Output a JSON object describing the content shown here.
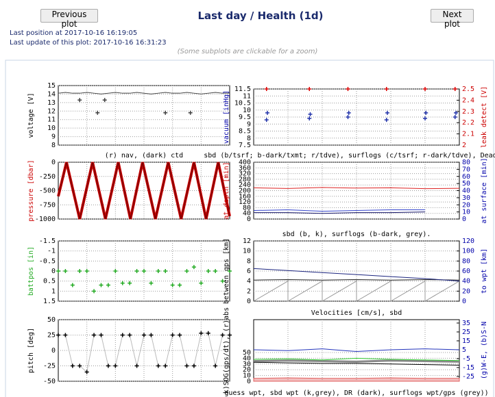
{
  "page": {
    "prev_button": "Previous plot",
    "title": "Last day / Health (1d)",
    "next_button": "Next plot",
    "last_position": "Last position at 2017-10-16 16:19:05",
    "last_update": "Last update of this plot: 2017-10-16 16:31:23",
    "note": "(Some subplots are clickable for a zoom)"
  },
  "chart_data": [
    {
      "type": "line",
      "ylabel": "voltage [V]",
      "ylabel_color": "#000000",
      "xlim": [
        0,
        24
      ],
      "ylim": [
        8,
        15
      ],
      "yticks": [
        8,
        9,
        10,
        11,
        12,
        13,
        14,
        15
      ],
      "grid": true,
      "series": [
        {
          "type": "line",
          "color": "#404040",
          "x": [
            0,
            1,
            2,
            3,
            4,
            5,
            6,
            7,
            8,
            9,
            10,
            11,
            12,
            13,
            14,
            15,
            16,
            17,
            18,
            19,
            20,
            21,
            22,
            23,
            24
          ],
          "values": [
            14.1,
            14.2,
            14.1,
            14.1,
            14.2,
            14.1,
            14.0,
            14.1,
            14.2,
            14.1,
            14.1,
            14.2,
            14.1,
            14.0,
            14.1,
            14.2,
            14.1,
            14.1,
            14.2,
            14.1,
            14.0,
            14.1,
            14.2,
            14.1,
            14.1
          ]
        },
        {
          "type": "scatter",
          "color": "#404040",
          "x": [
            3,
            5.5,
            6.5,
            15,
            18.5
          ],
          "values": [
            13.3,
            11.8,
            13.3,
            11.8,
            11.8
          ]
        }
      ]
    },
    {
      "type": "line",
      "title": "(r) nav, (dark) ctd",
      "ylabel": "pressure [dbar]",
      "ylabel_color": "#cc0000",
      "xlim": [
        0,
        24
      ],
      "ylim": [
        -1000,
        0
      ],
      "yticks": [
        0,
        -250,
        -500,
        -750,
        -1000
      ],
      "grid": true,
      "series": [
        {
          "type": "line",
          "color": "#cc0000",
          "width": 4,
          "x": [
            0,
            1.15,
            3,
            4.8,
            6.6,
            8.4,
            10.1,
            11.8,
            13.6,
            15.4,
            17.2,
            19,
            20.7,
            22.4,
            24
          ],
          "values": [
            -600,
            0,
            -1000,
            0,
            -1000,
            0,
            -1000,
            0,
            -1000,
            0,
            -1000,
            0,
            -1000,
            0,
            -950
          ]
        },
        {
          "type": "line",
          "color": "#7a0000",
          "width": 1.5,
          "x": [
            0,
            1.15,
            3,
            4.8,
            6.6,
            8.4,
            10.1,
            11.8,
            13.6,
            15.4,
            17.2,
            19,
            20.7,
            22.4,
            24
          ],
          "values": [
            -600,
            0,
            -1000,
            0,
            -1000,
            0,
            -1000,
            0,
            -1000,
            0,
            -1000,
            0,
            -1000,
            0,
            -950
          ]
        }
      ]
    },
    {
      "type": "line",
      "ylabel": "battpos [in]",
      "ylabel_color": "#22aa22",
      "xlim": [
        0,
        24
      ],
      "ylim": [
        1.5,
        -1.5
      ],
      "yticks": [
        -1.5,
        -1,
        -0.5,
        0,
        0.5,
        1,
        1.5
      ],
      "grid": true,
      "series": [
        {
          "type": "scatter",
          "color": "#22aa22",
          "x": [
            0,
            1,
            2,
            3,
            4,
            5,
            6,
            7,
            8,
            9,
            10,
            11,
            12,
            13,
            14,
            15,
            16,
            17,
            18,
            19,
            20,
            21,
            22,
            23,
            24
          ],
          "values": [
            0,
            0,
            0.7,
            0,
            0,
            1,
            0.7,
            0.7,
            0,
            0.6,
            0.6,
            0,
            0,
            0.6,
            0,
            0,
            0.7,
            0.7,
            0,
            -0.2,
            0.6,
            0,
            0,
            0.5,
            0
          ]
        }
      ]
    },
    {
      "type": "line",
      "ylabel": "pitch [deg]",
      "ylabel_color": "#000000",
      "xlim": [
        0,
        24
      ],
      "ylim": [
        -50,
        50
      ],
      "yticks": [
        -50,
        -25,
        0,
        25,
        50
      ],
      "grid": true,
      "series": [
        {
          "type": "linespoints",
          "color": "#000000",
          "line_color": "#bbbbbb",
          "x": [
            0,
            1,
            2,
            3,
            4,
            5,
            6,
            7,
            8,
            9,
            10,
            11,
            12,
            13,
            14,
            15,
            16,
            17,
            18,
            19,
            20,
            21,
            22,
            23,
            24
          ],
          "values": [
            25,
            25,
            -25,
            -25,
            -35,
            25,
            25,
            -25,
            -25,
            25,
            25,
            -25,
            25,
            25,
            -25,
            -25,
            25,
            25,
            -25,
            -25,
            28,
            28,
            -25,
            25,
            25
          ]
        }
      ]
    },
    {
      "type": "line",
      "ylabel": "vacuum [inHg]",
      "ylabel_color": "#0000aa",
      "y2label": "leak detect [V]",
      "y2label_color": "#cc0000",
      "xlim": [
        0,
        24
      ],
      "ylim": [
        7.5,
        11.5
      ],
      "yticks": [
        7.5,
        8,
        8.5,
        9,
        9.5,
        10,
        10.5,
        11,
        11.5
      ],
      "y2lim": [
        2,
        2.5
      ],
      "y2ticks": [
        2,
        2.1,
        2.2,
        2.3,
        2.4,
        2.5
      ],
      "grid": true,
      "series": [
        {
          "type": "scatter",
          "color": "#2233aa",
          "x": [
            1.5,
            1.6,
            6.5,
            6.6,
            11,
            11.1,
            15.5,
            15.6,
            20,
            20.1,
            23.5,
            23.6
          ],
          "values": [
            9.3,
            9.8,
            9.4,
            9.7,
            9.5,
            9.8,
            9.3,
            9.8,
            9.4,
            9.8,
            9.5,
            9.8
          ]
        },
        {
          "type": "scatter",
          "axis": "y2",
          "color": "#dd0000",
          "x": [
            1.5,
            6.5,
            11,
            15.5,
            20,
            23.5
          ],
          "values": [
            2.5,
            2.5,
            2.5,
            2.5,
            2.5,
            2.5
          ]
        }
      ]
    },
    {
      "type": "line",
      "title": "sbd (b/tsrf; b-dark/txmt; r/tdve), surflogs (c/tsrf; r-dark/tdve), Deadbar",
      "ylabel": "at depth [min]",
      "ylabel_color": "#cc0000",
      "y2label": "at surface [min]",
      "y2label_color": "#0000aa",
      "xlim": [
        0,
        24
      ],
      "ylim": [
        0,
        400
      ],
      "yticks": [
        0,
        40,
        80,
        120,
        160,
        200,
        240,
        280,
        320,
        360,
        400
      ],
      "y2lim": [
        0,
        80
      ],
      "y2ticks": [
        0,
        10,
        20,
        30,
        40,
        50,
        60,
        70,
        80
      ],
      "grid": true,
      "series": [
        {
          "type": "line",
          "color": "#dd2222",
          "x": [
            0,
            4,
            8,
            12,
            16,
            20,
            24
          ],
          "values": [
            220,
            215,
            222,
            218,
            220,
            214,
            216
          ]
        },
        {
          "type": "line",
          "axis": "y2",
          "color": "#3344cc",
          "x": [
            0,
            4,
            8,
            12,
            16,
            20
          ],
          "values": [
            12,
            13,
            11,
            12,
            13,
            13
          ]
        },
        {
          "type": "line",
          "axis": "y2",
          "color": "#111166",
          "x": [
            0,
            4,
            8,
            12,
            16,
            20
          ],
          "values": [
            9,
            9,
            8,
            9,
            9,
            10
          ]
        }
      ]
    },
    {
      "type": "line",
      "title": "sbd (b, k), surflogs (b-dark, grey).",
      "ylabel": "between gps [km]",
      "ylabel_color": "#000000",
      "y2label": "to wpt [km]",
      "y2label_color": "#0000aa",
      "xlim": [
        0,
        24
      ],
      "ylim": [
        0,
        12
      ],
      "yticks": [
        0,
        2,
        4,
        6,
        8,
        10,
        12
      ],
      "y2lim": [
        0,
        120
      ],
      "y2ticks": [
        0,
        20,
        40,
        60,
        80,
        100,
        120
      ],
      "grid": true,
      "series": [
        {
          "type": "line",
          "color": "#999999",
          "x": [
            0,
            4,
            4,
            8,
            8,
            12,
            12,
            16,
            16,
            20,
            20,
            24
          ],
          "values": [
            0,
            4,
            0,
            4,
            0,
            4,
            0,
            4,
            0,
            4,
            0,
            4
          ]
        },
        {
          "type": "line",
          "color": "#222222",
          "x": [
            0,
            4,
            8,
            12,
            16,
            20,
            24
          ],
          "values": [
            4.2,
            4.3,
            4.2,
            4.3,
            4.2,
            4.3,
            4.2
          ]
        },
        {
          "type": "line",
          "axis": "y2",
          "color": "#1a237e",
          "x": [
            0,
            4,
            8,
            12,
            16,
            20,
            24
          ],
          "values": [
            65,
            61,
            57,
            53,
            49,
            45,
            40
          ]
        }
      ]
    },
    {
      "type": "line",
      "title": "Velocities [cm/s], sbd",
      "xlabel": "guess wpt, sbd wpt (k,grey), DR (dark), surflogs wpt/gps (grey))",
      "ylabel": "k)SOG(gps/dt), (r)abs",
      "ylabel_color": "#000000",
      "y2label": "(g)W-E, (b)S-N",
      "y2label_color": "#0000aa",
      "xlim": [
        0,
        24
      ],
      "ylim": [
        0,
        107
      ],
      "yticks": [
        0,
        10,
        20,
        30,
        40,
        50
      ],
      "y2lim": [
        -30.4,
        38.8
      ],
      "y2ticks": [
        -25,
        -15,
        -5,
        5,
        15,
        25,
        35
      ],
      "grid": true,
      "series": [
        {
          "type": "area",
          "color": "#e06060",
          "x": [
            0,
            4,
            8,
            12,
            16,
            20,
            24
          ],
          "values": [
            5,
            6,
            5,
            5,
            6,
            5,
            5
          ]
        },
        {
          "type": "line",
          "color": "#888888",
          "width": 3,
          "x": [
            0,
            4,
            8,
            12,
            16,
            20,
            24
          ],
          "values": [
            35,
            36,
            35,
            34,
            36,
            35,
            34
          ]
        },
        {
          "type": "line",
          "color": "#33cc33",
          "x": [
            0,
            4,
            8,
            12,
            16,
            20,
            24
          ],
          "values": [
            38,
            39,
            37,
            40,
            38,
            37,
            36
          ]
        },
        {
          "type": "line",
          "color": "#000000",
          "x": [
            0,
            4,
            8,
            12,
            16,
            20,
            24
          ],
          "values": [
            33,
            32,
            31,
            31,
            30,
            29,
            28
          ]
        },
        {
          "type": "line",
          "axis": "y2",
          "color": "#2233bb",
          "x": [
            0,
            4,
            8,
            12,
            16,
            20,
            24
          ],
          "values": [
            5,
            4,
            6,
            3,
            5,
            6,
            5
          ]
        }
      ]
    }
  ]
}
